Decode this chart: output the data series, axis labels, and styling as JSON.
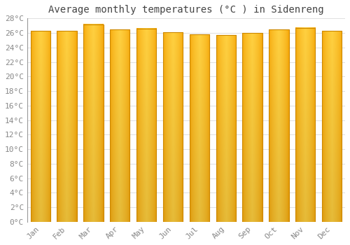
{
  "title": "Average monthly temperatures (°C ) in Sidenreng",
  "months": [
    "Jan",
    "Feb",
    "Mar",
    "Apr",
    "May",
    "Jun",
    "Jul",
    "Aug",
    "Sep",
    "Oct",
    "Nov",
    "Dec"
  ],
  "values": [
    26.3,
    26.3,
    27.2,
    26.5,
    26.6,
    26.1,
    25.8,
    25.7,
    26.0,
    26.5,
    26.7,
    26.3
  ],
  "ylim": [
    0,
    28
  ],
  "yticks": [
    0,
    2,
    4,
    6,
    8,
    10,
    12,
    14,
    16,
    18,
    20,
    22,
    24,
    26,
    28
  ],
  "ytick_labels": [
    "0°C",
    "2°C",
    "4°C",
    "6°C",
    "8°C",
    "10°C",
    "12°C",
    "14°C",
    "16°C",
    "18°C",
    "20°C",
    "22°C",
    "24°C",
    "26°C",
    "28°C"
  ],
  "background_color": "#ffffff",
  "grid_color": "#e0e0e0",
  "title_fontsize": 10,
  "tick_fontsize": 8,
  "bar_color_center": "#FFD040",
  "bar_color_edge": "#F5A000",
  "bar_edge_color": "#CC8800",
  "bar_width": 0.75
}
